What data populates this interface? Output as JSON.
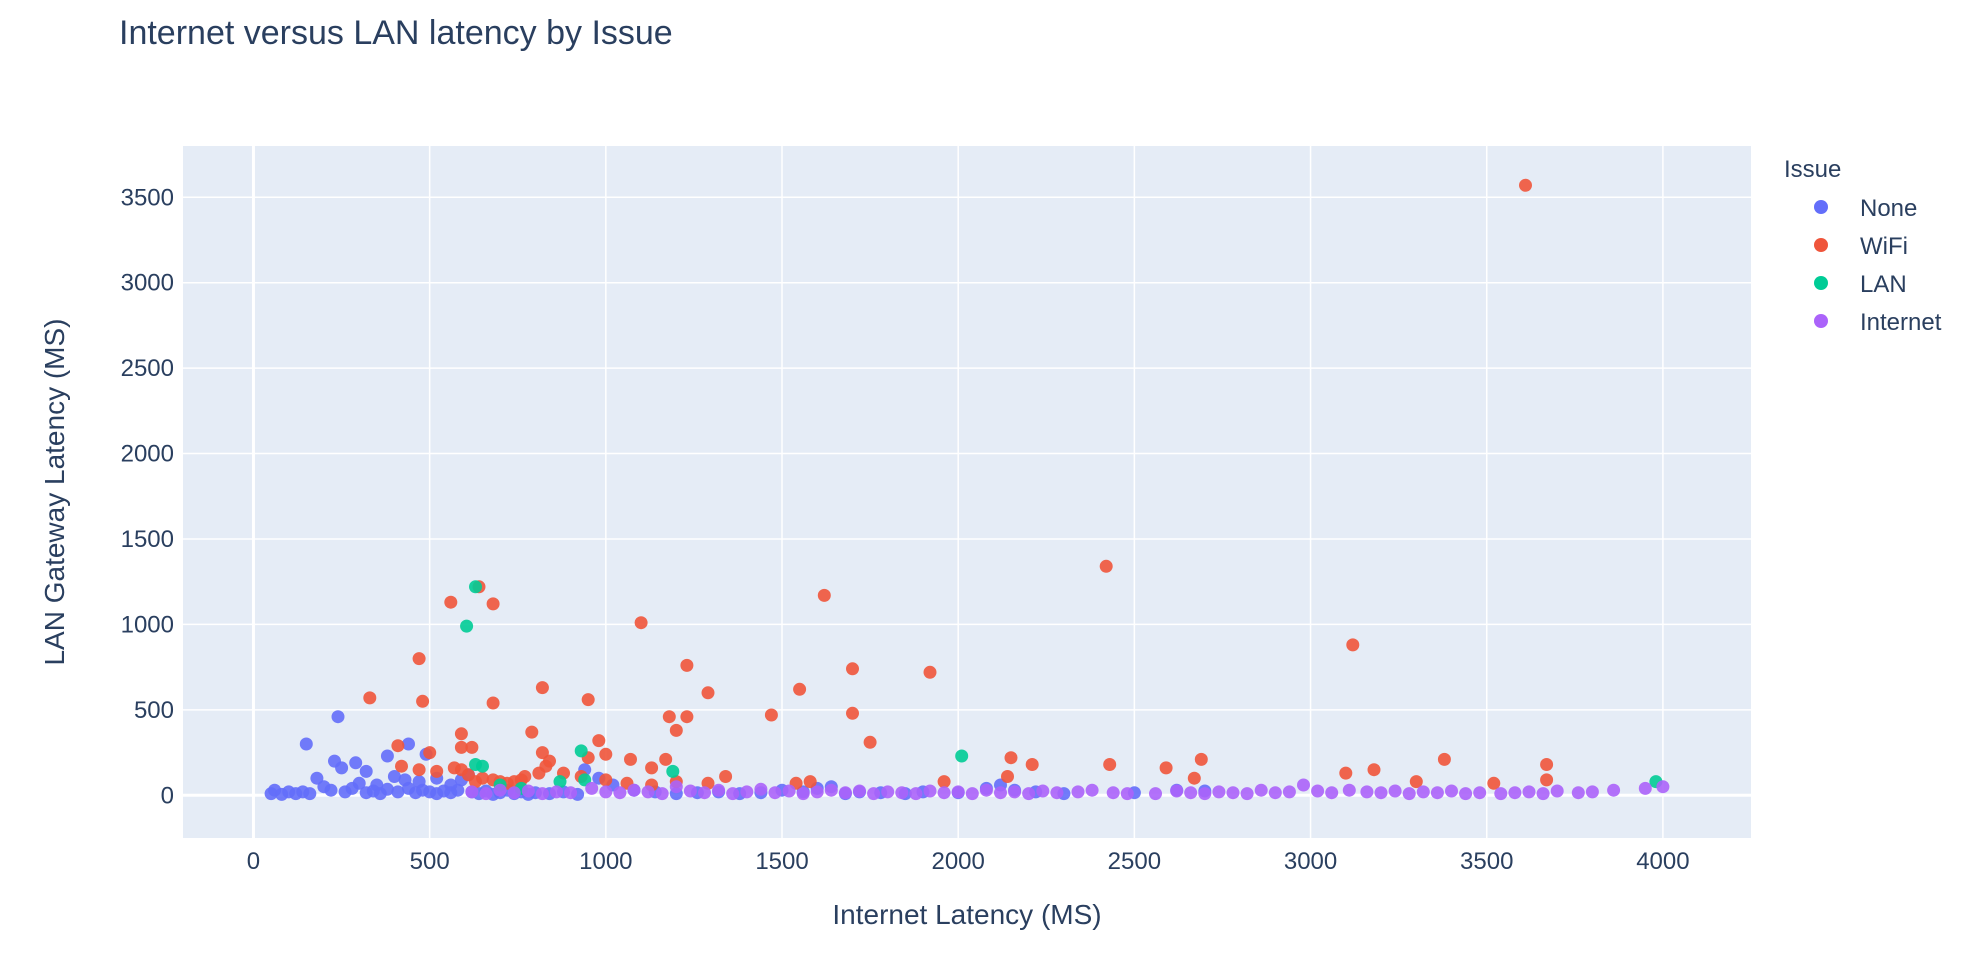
{
  "chart_data": {
    "type": "scatter",
    "title": "Internet versus LAN latency by Issue",
    "xlabel": "Internet Latency (MS)",
    "ylabel": "LAN Gateway Latency (MS)",
    "xlim": [
      -200,
      4250
    ],
    "ylim": [
      -250,
      3800
    ],
    "xticks": [
      0,
      500,
      1000,
      1500,
      2000,
      2500,
      3000,
      3500,
      4000
    ],
    "yticks": [
      0,
      500,
      1000,
      1500,
      2000,
      2500,
      3000,
      3500
    ],
    "grid": true,
    "legend": {
      "title": "Issue",
      "placement": "top-right"
    },
    "colors": {
      "plot_bg": "#e5ecf6",
      "grid": "#ffffff",
      "text": "#2a3f5f"
    },
    "series": [
      {
        "name": "None",
        "color": "#636efa",
        "points": [
          [
            150,
            300
          ],
          [
            240,
            460
          ],
          [
            230,
            200
          ],
          [
            250,
            160
          ],
          [
            290,
            190
          ],
          [
            320,
            140
          ],
          [
            380,
            230
          ],
          [
            440,
            300
          ],
          [
            490,
            240
          ],
          [
            400,
            110
          ],
          [
            430,
            90
          ],
          [
            470,
            80
          ],
          [
            520,
            100
          ],
          [
            560,
            60
          ],
          [
            590,
            90
          ],
          [
            610,
            120
          ],
          [
            300,
            70
          ],
          [
            350,
            60
          ],
          [
            200,
            50
          ],
          [
            180,
            100
          ],
          [
            100,
            20
          ],
          [
            120,
            10
          ],
          [
            60,
            30
          ],
          [
            50,
            10
          ],
          [
            80,
            5
          ],
          [
            140,
            20
          ],
          [
            160,
            10
          ],
          [
            220,
            30
          ],
          [
            260,
            20
          ],
          [
            280,
            40
          ],
          [
            320,
            15
          ],
          [
            340,
            25
          ],
          [
            360,
            10
          ],
          [
            380,
            35
          ],
          [
            410,
            20
          ],
          [
            440,
            40
          ],
          [
            460,
            15
          ],
          [
            480,
            30
          ],
          [
            500,
            20
          ],
          [
            520,
            10
          ],
          [
            540,
            25
          ],
          [
            560,
            15
          ],
          [
            580,
            30
          ],
          [
            620,
            20
          ],
          [
            640,
            10
          ],
          [
            660,
            25
          ],
          [
            680,
            5
          ],
          [
            700,
            15
          ],
          [
            720,
            30
          ],
          [
            740,
            10
          ],
          [
            760,
            20
          ],
          [
            780,
            5
          ],
          [
            800,
            15
          ],
          [
            840,
            10
          ],
          [
            880,
            20
          ],
          [
            920,
            5
          ],
          [
            940,
            150
          ],
          [
            980,
            100
          ],
          [
            1020,
            60
          ],
          [
            1080,
            30
          ],
          [
            1140,
            20
          ],
          [
            1200,
            10
          ],
          [
            1260,
            15
          ],
          [
            1320,
            20
          ],
          [
            1380,
            10
          ],
          [
            1440,
            15
          ],
          [
            1500,
            30
          ],
          [
            1560,
            20
          ],
          [
            1600,
            40
          ],
          [
            1640,
            50
          ],
          [
            1680,
            10
          ],
          [
            1720,
            20
          ],
          [
            1780,
            15
          ],
          [
            1850,
            10
          ],
          [
            1900,
            20
          ],
          [
            2000,
            15
          ],
          [
            2080,
            40
          ],
          [
            2120,
            60
          ],
          [
            2160,
            30
          ],
          [
            2220,
            20
          ],
          [
            2300,
            10
          ],
          [
            2500,
            15
          ],
          [
            2620,
            30
          ],
          [
            2700,
            25
          ]
        ]
      },
      {
        "name": "WiFi",
        "color": "#ef553b",
        "points": [
          [
            3610,
            3570
          ],
          [
            2420,
            1340
          ],
          [
            640,
            1220
          ],
          [
            560,
            1130
          ],
          [
            680,
            1120
          ],
          [
            1620,
            1170
          ],
          [
            1100,
            1010
          ],
          [
            3120,
            880
          ],
          [
            470,
            800
          ],
          [
            1230,
            760
          ],
          [
            1700,
            740
          ],
          [
            1920,
            720
          ],
          [
            820,
            630
          ],
          [
            1550,
            620
          ],
          [
            1290,
            600
          ],
          [
            330,
            570
          ],
          [
            480,
            550
          ],
          [
            680,
            540
          ],
          [
            950,
            560
          ],
          [
            1470,
            470
          ],
          [
            1180,
            460
          ],
          [
            1230,
            460
          ],
          [
            1700,
            480
          ],
          [
            1200,
            380
          ],
          [
            590,
            360
          ],
          [
            790,
            370
          ],
          [
            980,
            320
          ],
          [
            1750,
            310
          ],
          [
            410,
            290
          ],
          [
            590,
            280
          ],
          [
            620,
            280
          ],
          [
            820,
            250
          ],
          [
            500,
            250
          ],
          [
            1000,
            240
          ],
          [
            950,
            220
          ],
          [
            1070,
            210
          ],
          [
            1170,
            210
          ],
          [
            2150,
            220
          ],
          [
            2210,
            180
          ],
          [
            2430,
            180
          ],
          [
            2590,
            160
          ],
          [
            2690,
            210
          ],
          [
            3380,
            210
          ],
          [
            3670,
            180
          ],
          [
            3180,
            150
          ],
          [
            3100,
            130
          ],
          [
            2670,
            100
          ],
          [
            2140,
            110
          ],
          [
            1960,
            80
          ],
          [
            1540,
            70
          ],
          [
            1580,
            80
          ],
          [
            1130,
            160
          ],
          [
            840,
            200
          ],
          [
            830,
            170
          ],
          [
            810,
            130
          ],
          [
            770,
            110
          ],
          [
            760,
            90
          ],
          [
            740,
            80
          ],
          [
            720,
            70
          ],
          [
            700,
            80
          ],
          [
            680,
            90
          ],
          [
            650,
            100
          ],
          [
            630,
            80
          ],
          [
            610,
            120
          ],
          [
            590,
            150
          ],
          [
            570,
            160
          ],
          [
            520,
            140
          ],
          [
            470,
            150
          ],
          [
            420,
            170
          ],
          [
            880,
            130
          ],
          [
            930,
            110
          ],
          [
            1000,
            90
          ],
          [
            1060,
            70
          ],
          [
            1130,
            60
          ],
          [
            1200,
            80
          ],
          [
            1290,
            70
          ],
          [
            1340,
            110
          ],
          [
            3300,
            80
          ],
          [
            3520,
            70
          ],
          [
            3670,
            90
          ]
        ]
      },
      {
        "name": "LAN",
        "color": "#00cc96",
        "points": [
          [
            630,
            1220
          ],
          [
            605,
            990
          ],
          [
            930,
            260
          ],
          [
            2010,
            230
          ],
          [
            630,
            180
          ],
          [
            650,
            170
          ],
          [
            1190,
            140
          ],
          [
            870,
            80
          ],
          [
            940,
            90
          ],
          [
            3980,
            80
          ],
          [
            700,
            60
          ],
          [
            760,
            40
          ]
        ]
      },
      {
        "name": "Internet",
        "color": "#ab63fa",
        "points": [
          [
            620,
            20
          ],
          [
            660,
            10
          ],
          [
            700,
            30
          ],
          [
            740,
            15
          ],
          [
            780,
            25
          ],
          [
            820,
            10
          ],
          [
            860,
            20
          ],
          [
            900,
            15
          ],
          [
            960,
            40
          ],
          [
            1000,
            20
          ],
          [
            1040,
            15
          ],
          [
            1080,
            30
          ],
          [
            1120,
            20
          ],
          [
            1160,
            10
          ],
          [
            1200,
            50
          ],
          [
            1240,
            25
          ],
          [
            1280,
            15
          ],
          [
            1320,
            30
          ],
          [
            1360,
            10
          ],
          [
            1400,
            20
          ],
          [
            1440,
            35
          ],
          [
            1480,
            15
          ],
          [
            1520,
            25
          ],
          [
            1560,
            10
          ],
          [
            1600,
            20
          ],
          [
            1640,
            30
          ],
          [
            1680,
            15
          ],
          [
            1720,
            25
          ],
          [
            1760,
            10
          ],
          [
            1800,
            20
          ],
          [
            1840,
            15
          ],
          [
            1880,
            10
          ],
          [
            1920,
            25
          ],
          [
            1960,
            15
          ],
          [
            2000,
            20
          ],
          [
            2040,
            10
          ],
          [
            2080,
            30
          ],
          [
            2120,
            15
          ],
          [
            2160,
            20
          ],
          [
            2200,
            10
          ],
          [
            2240,
            25
          ],
          [
            2280,
            15
          ],
          [
            2340,
            20
          ],
          [
            2380,
            30
          ],
          [
            2440,
            15
          ],
          [
            2480,
            10
          ],
          [
            2560,
            10
          ],
          [
            2620,
            25
          ],
          [
            2660,
            15
          ],
          [
            2700,
            10
          ],
          [
            2740,
            20
          ],
          [
            2780,
            15
          ],
          [
            2820,
            10
          ],
          [
            2860,
            30
          ],
          [
            2900,
            15
          ],
          [
            2940,
            20
          ],
          [
            2980,
            60
          ],
          [
            3020,
            25
          ],
          [
            3060,
            15
          ],
          [
            3110,
            30
          ],
          [
            3160,
            20
          ],
          [
            3200,
            15
          ],
          [
            3240,
            25
          ],
          [
            3280,
            10
          ],
          [
            3320,
            20
          ],
          [
            3360,
            15
          ],
          [
            3400,
            25
          ],
          [
            3440,
            10
          ],
          [
            3480,
            15
          ],
          [
            3540,
            10
          ],
          [
            3580,
            15
          ],
          [
            3620,
            20
          ],
          [
            3660,
            10
          ],
          [
            3700,
            25
          ],
          [
            3760,
            15
          ],
          [
            3800,
            20
          ],
          [
            3860,
            30
          ],
          [
            3950,
            40
          ],
          [
            4000,
            50
          ]
        ]
      }
    ]
  }
}
